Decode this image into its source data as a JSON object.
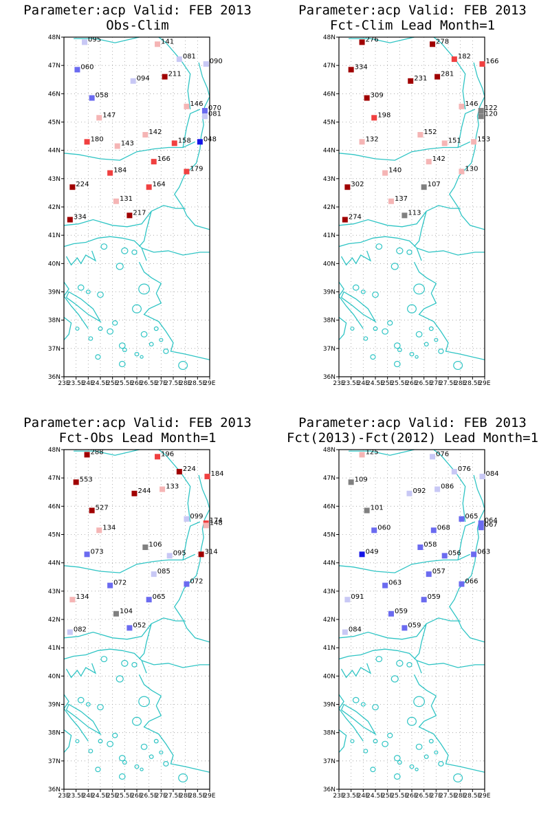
{
  "colors": {
    "coast": "#2ec4c4",
    "grid": "#999999",
    "frame": "#000000",
    "scale": {
      "deep_blue": "#1515e6",
      "blue": "#6b6bf0",
      "light_blue": "#c8c8f5",
      "gray": "#808080",
      "light_red": "#f5b5b5",
      "red": "#f04040",
      "dark_red": "#a00000"
    }
  },
  "map": {
    "lon_range": [
      23,
      29
    ],
    "lat_range": [
      36,
      48
    ],
    "lat_tick_labels": [
      "48N",
      "47N",
      "46N",
      "45N",
      "44N",
      "43N",
      "42N",
      "41N",
      "40N",
      "39N",
      "38N",
      "37N",
      "36N"
    ],
    "lon_tick_labels": [
      "23E",
      "23.5E",
      "24E",
      "24.5E",
      "25E",
      "25.5E",
      "26E",
      "26.5E",
      "27E",
      "27.5E",
      "28E",
      "28.5E",
      "29E"
    ]
  },
  "panels": [
    {
      "title_line1": "Parameter:acp Valid: FEB 2013",
      "title_line2": "Obs-Clim",
      "stations": [
        {
          "label": "095",
          "lon": 23.85,
          "lat": 47.82,
          "color": "light_blue"
        },
        {
          "label": "141",
          "lon": 26.85,
          "lat": 47.75,
          "color": "light_red"
        },
        {
          "label": "081",
          "lon": 27.75,
          "lat": 47.22,
          "color": "light_blue"
        },
        {
          "label": "090",
          "lon": 28.85,
          "lat": 47.05,
          "color": "light_blue"
        },
        {
          "label": "060",
          "lon": 23.55,
          "lat": 46.85,
          "color": "blue"
        },
        {
          "label": "211",
          "lon": 27.15,
          "lat": 46.6,
          "color": "dark_red"
        },
        {
          "label": "094",
          "lon": 25.85,
          "lat": 46.45,
          "color": "light_blue"
        },
        {
          "label": "058",
          "lon": 24.15,
          "lat": 45.85,
          "color": "blue"
        },
        {
          "label": "146",
          "lon": 28.05,
          "lat": 45.55,
          "color": "light_red"
        },
        {
          "label": "070",
          "lon": 28.8,
          "lat": 45.4,
          "color": "blue"
        },
        {
          "label": "081",
          "lon": 28.8,
          "lat": 45.2,
          "color": "light_blue"
        },
        {
          "label": "147",
          "lon": 24.45,
          "lat": 45.15,
          "color": "light_red"
        },
        {
          "label": "142",
          "lon": 26.35,
          "lat": 44.55,
          "color": "light_red"
        },
        {
          "label": "180",
          "lon": 23.95,
          "lat": 44.3,
          "color": "red"
        },
        {
          "label": "143",
          "lon": 25.2,
          "lat": 44.15,
          "color": "light_red"
        },
        {
          "label": "158",
          "lon": 27.55,
          "lat": 44.25,
          "color": "red"
        },
        {
          "label": "048",
          "lon": 28.6,
          "lat": 44.3,
          "color": "deep_blue"
        },
        {
          "label": "166",
          "lon": 26.7,
          "lat": 43.6,
          "color": "red"
        },
        {
          "label": "184",
          "lon": 24.9,
          "lat": 43.2,
          "color": "red"
        },
        {
          "label": "179",
          "lon": 28.05,
          "lat": 43.25,
          "color": "red"
        },
        {
          "label": "224",
          "lon": 23.35,
          "lat": 42.7,
          "color": "dark_red"
        },
        {
          "label": "164",
          "lon": 26.5,
          "lat": 42.7,
          "color": "red"
        },
        {
          "label": "131",
          "lon": 25.15,
          "lat": 42.2,
          "color": "light_red"
        },
        {
          "label": "217",
          "lon": 25.7,
          "lat": 41.7,
          "color": "dark_red"
        },
        {
          "label": "334",
          "lon": 23.25,
          "lat": 41.55,
          "color": "dark_red"
        }
      ]
    },
    {
      "title_line1": "Parameter:acp Valid: FEB 2013",
      "title_line2": "Fct-Clim Lead Month=1",
      "stations": [
        {
          "label": "276",
          "lon": 23.95,
          "lat": 47.82,
          "color": "dark_red"
        },
        {
          "label": "278",
          "lon": 26.85,
          "lat": 47.75,
          "color": "dark_red"
        },
        {
          "label": "182",
          "lon": 27.75,
          "lat": 47.22,
          "color": "red"
        },
        {
          "label": "166",
          "lon": 28.9,
          "lat": 47.05,
          "color": "red"
        },
        {
          "label": "334",
          "lon": 23.5,
          "lat": 46.85,
          "color": "dark_red"
        },
        {
          "label": "231",
          "lon": 25.95,
          "lat": 46.45,
          "color": "dark_red"
        },
        {
          "label": "281",
          "lon": 27.05,
          "lat": 46.6,
          "color": "dark_red"
        },
        {
          "label": "309",
          "lon": 24.15,
          "lat": 45.85,
          "color": "dark_red"
        },
        {
          "label": "146",
          "lon": 28.05,
          "lat": 45.55,
          "color": "light_red"
        },
        {
          "label": "122",
          "lon": 28.85,
          "lat": 45.4,
          "color": "gray"
        },
        {
          "label": "120",
          "lon": 28.85,
          "lat": 45.2,
          "color": "gray"
        },
        {
          "label": "198",
          "lon": 24.45,
          "lat": 45.15,
          "color": "red"
        },
        {
          "label": "152",
          "lon": 26.35,
          "lat": 44.55,
          "color": "light_red"
        },
        {
          "label": "132",
          "lon": 23.95,
          "lat": 44.3,
          "color": "light_red"
        },
        {
          "label": "151",
          "lon": 27.35,
          "lat": 44.25,
          "color": "light_red"
        },
        {
          "label": "153",
          "lon": 28.55,
          "lat": 44.3,
          "color": "light_red"
        },
        {
          "label": "142",
          "lon": 26.7,
          "lat": 43.6,
          "color": "light_red"
        },
        {
          "label": "140",
          "lon": 24.9,
          "lat": 43.2,
          "color": "light_red"
        },
        {
          "label": "130",
          "lon": 28.05,
          "lat": 43.25,
          "color": "light_red"
        },
        {
          "label": "302",
          "lon": 23.35,
          "lat": 42.7,
          "color": "dark_red"
        },
        {
          "label": "107",
          "lon": 26.5,
          "lat": 42.7,
          "color": "gray"
        },
        {
          "label": "137",
          "lon": 25.15,
          "lat": 42.2,
          "color": "light_red"
        },
        {
          "label": "113",
          "lon": 25.7,
          "lat": 41.7,
          "color": "gray"
        },
        {
          "label": "274",
          "lon": 23.25,
          "lat": 41.55,
          "color": "dark_red"
        }
      ]
    },
    {
      "title_line1": "Parameter:acp Valid: FEB 2013",
      "title_line2": "Fct-Obs Lead Month=1",
      "stations": [
        {
          "label": "288",
          "lon": 23.95,
          "lat": 47.82,
          "color": "dark_red"
        },
        {
          "label": "196",
          "lon": 26.85,
          "lat": 47.75,
          "color": "red"
        },
        {
          "label": "224",
          "lon": 27.75,
          "lat": 47.22,
          "color": "dark_red"
        },
        {
          "label": "184",
          "lon": 28.9,
          "lat": 47.05,
          "color": "red"
        },
        {
          "label": "553",
          "lon": 23.5,
          "lat": 46.85,
          "color": "dark_red"
        },
        {
          "label": "244",
          "lon": 25.9,
          "lat": 46.45,
          "color": "dark_red"
        },
        {
          "label": "133",
          "lon": 27.05,
          "lat": 46.6,
          "color": "light_red"
        },
        {
          "label": "527",
          "lon": 24.15,
          "lat": 45.85,
          "color": "dark_red"
        },
        {
          "label": "099",
          "lon": 28.05,
          "lat": 45.55,
          "color": "light_blue"
        },
        {
          "label": "174",
          "lon": 28.85,
          "lat": 45.4,
          "color": "red"
        },
        {
          "label": "148",
          "lon": 28.85,
          "lat": 45.32,
          "color": "light_red"
        },
        {
          "label": "134",
          "lon": 24.45,
          "lat": 45.15,
          "color": "light_red"
        },
        {
          "label": "106",
          "lon": 26.35,
          "lat": 44.55,
          "color": "gray"
        },
        {
          "label": "073",
          "lon": 23.95,
          "lat": 44.3,
          "color": "blue"
        },
        {
          "label": "095",
          "lon": 27.35,
          "lat": 44.25,
          "color": "light_blue"
        },
        {
          "label": "314",
          "lon": 28.65,
          "lat": 44.3,
          "color": "dark_red"
        },
        {
          "label": "085",
          "lon": 26.7,
          "lat": 43.6,
          "color": "light_blue"
        },
        {
          "label": "072",
          "lon": 24.9,
          "lat": 43.2,
          "color": "blue"
        },
        {
          "label": "072",
          "lon": 28.05,
          "lat": 43.25,
          "color": "blue"
        },
        {
          "label": "134",
          "lon": 23.35,
          "lat": 42.7,
          "color": "light_red"
        },
        {
          "label": "065",
          "lon": 26.5,
          "lat": 42.7,
          "color": "blue"
        },
        {
          "label": "104",
          "lon": 25.15,
          "lat": 42.2,
          "color": "gray"
        },
        {
          "label": "052",
          "lon": 25.7,
          "lat": 41.7,
          "color": "blue"
        },
        {
          "label": "082",
          "lon": 23.25,
          "lat": 41.55,
          "color": "light_blue"
        }
      ]
    },
    {
      "title_line1": "Parameter:acp Valid: FEB 2013",
      "title_line2": "Fct(2013)-Fct(2012) Lead Month=1",
      "stations": [
        {
          "label": "125",
          "lon": 23.95,
          "lat": 47.82,
          "color": "light_red"
        },
        {
          "label": "076",
          "lon": 26.85,
          "lat": 47.75,
          "color": "light_blue"
        },
        {
          "label": "076",
          "lon": 27.75,
          "lat": 47.22,
          "color": "light_blue"
        },
        {
          "label": "084",
          "lon": 28.9,
          "lat": 47.05,
          "color": "light_blue"
        },
        {
          "label": "109",
          "lon": 23.5,
          "lat": 46.85,
          "color": "gray"
        },
        {
          "label": "092",
          "lon": 25.9,
          "lat": 46.45,
          "color": "light_blue"
        },
        {
          "label": "086",
          "lon": 27.05,
          "lat": 46.6,
          "color": "light_blue"
        },
        {
          "label": "101",
          "lon": 24.15,
          "lat": 45.85,
          "color": "gray"
        },
        {
          "label": "065",
          "lon": 28.05,
          "lat": 45.55,
          "color": "blue"
        },
        {
          "label": "064",
          "lon": 28.85,
          "lat": 45.4,
          "color": "blue"
        },
        {
          "label": "067",
          "lon": 28.85,
          "lat": 45.25,
          "color": "blue"
        },
        {
          "label": "060",
          "lon": 24.45,
          "lat": 45.15,
          "color": "blue"
        },
        {
          "label": "068",
          "lon": 26.9,
          "lat": 45.15,
          "color": "blue"
        },
        {
          "label": "058",
          "lon": 26.35,
          "lat": 44.55,
          "color": "blue"
        },
        {
          "label": "049",
          "lon": 23.95,
          "lat": 44.3,
          "color": "deep_blue"
        },
        {
          "label": "056",
          "lon": 27.35,
          "lat": 44.25,
          "color": "blue"
        },
        {
          "label": "063",
          "lon": 28.55,
          "lat": 44.3,
          "color": "blue"
        },
        {
          "label": "057",
          "lon": 26.7,
          "lat": 43.6,
          "color": "blue"
        },
        {
          "label": "063",
          "lon": 24.9,
          "lat": 43.2,
          "color": "blue"
        },
        {
          "label": "066",
          "lon": 28.05,
          "lat": 43.25,
          "color": "blue"
        },
        {
          "label": "091",
          "lon": 23.35,
          "lat": 42.7,
          "color": "light_blue"
        },
        {
          "label": "059",
          "lon": 26.5,
          "lat": 42.7,
          "color": "blue"
        },
        {
          "label": "059",
          "lon": 25.15,
          "lat": 42.2,
          "color": "blue"
        },
        {
          "label": "059",
          "lon": 25.7,
          "lat": 41.7,
          "color": "blue"
        },
        {
          "label": "084",
          "lon": 23.25,
          "lat": 41.55,
          "color": "light_blue"
        }
      ]
    }
  ]
}
